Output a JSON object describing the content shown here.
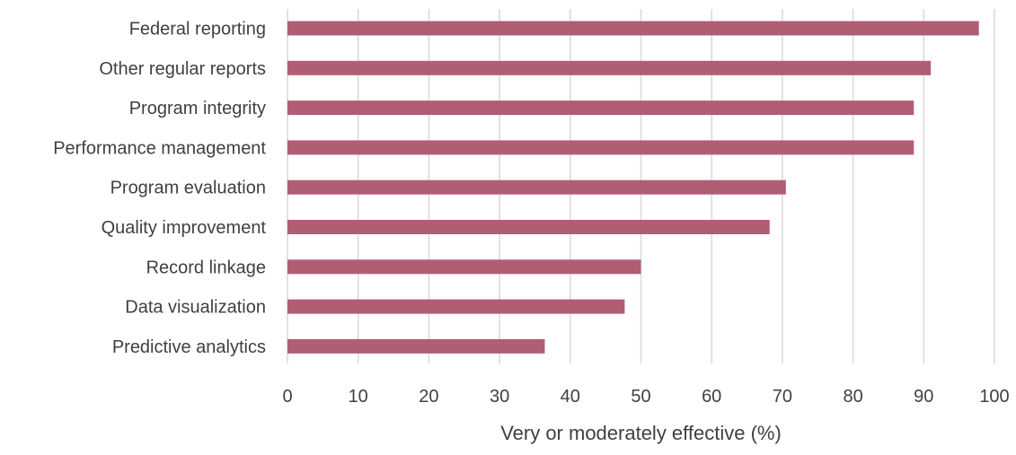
{
  "chart_data": {
    "type": "bar",
    "orientation": "horizontal",
    "categories": [
      "Federal reporting",
      "Other regular reports",
      "Program integrity",
      "Performance management",
      "Program evaluation",
      "Quality improvement",
      "Record linkage",
      "Data visualization",
      "Predictive analytics"
    ],
    "values": [
      97.8,
      91.0,
      88.6,
      88.6,
      70.5,
      68.2,
      50.0,
      47.7,
      36.4
    ],
    "xlabel": "Very or moderately effective (%)",
    "ylabel": "",
    "xlim": [
      0,
      100
    ],
    "xticks": [
      "0",
      "10",
      "20",
      "30",
      "40",
      "50",
      "60",
      "70",
      "80",
      "90",
      "100"
    ],
    "grid": true,
    "legend": "none",
    "bar_color": "#b05e74"
  }
}
